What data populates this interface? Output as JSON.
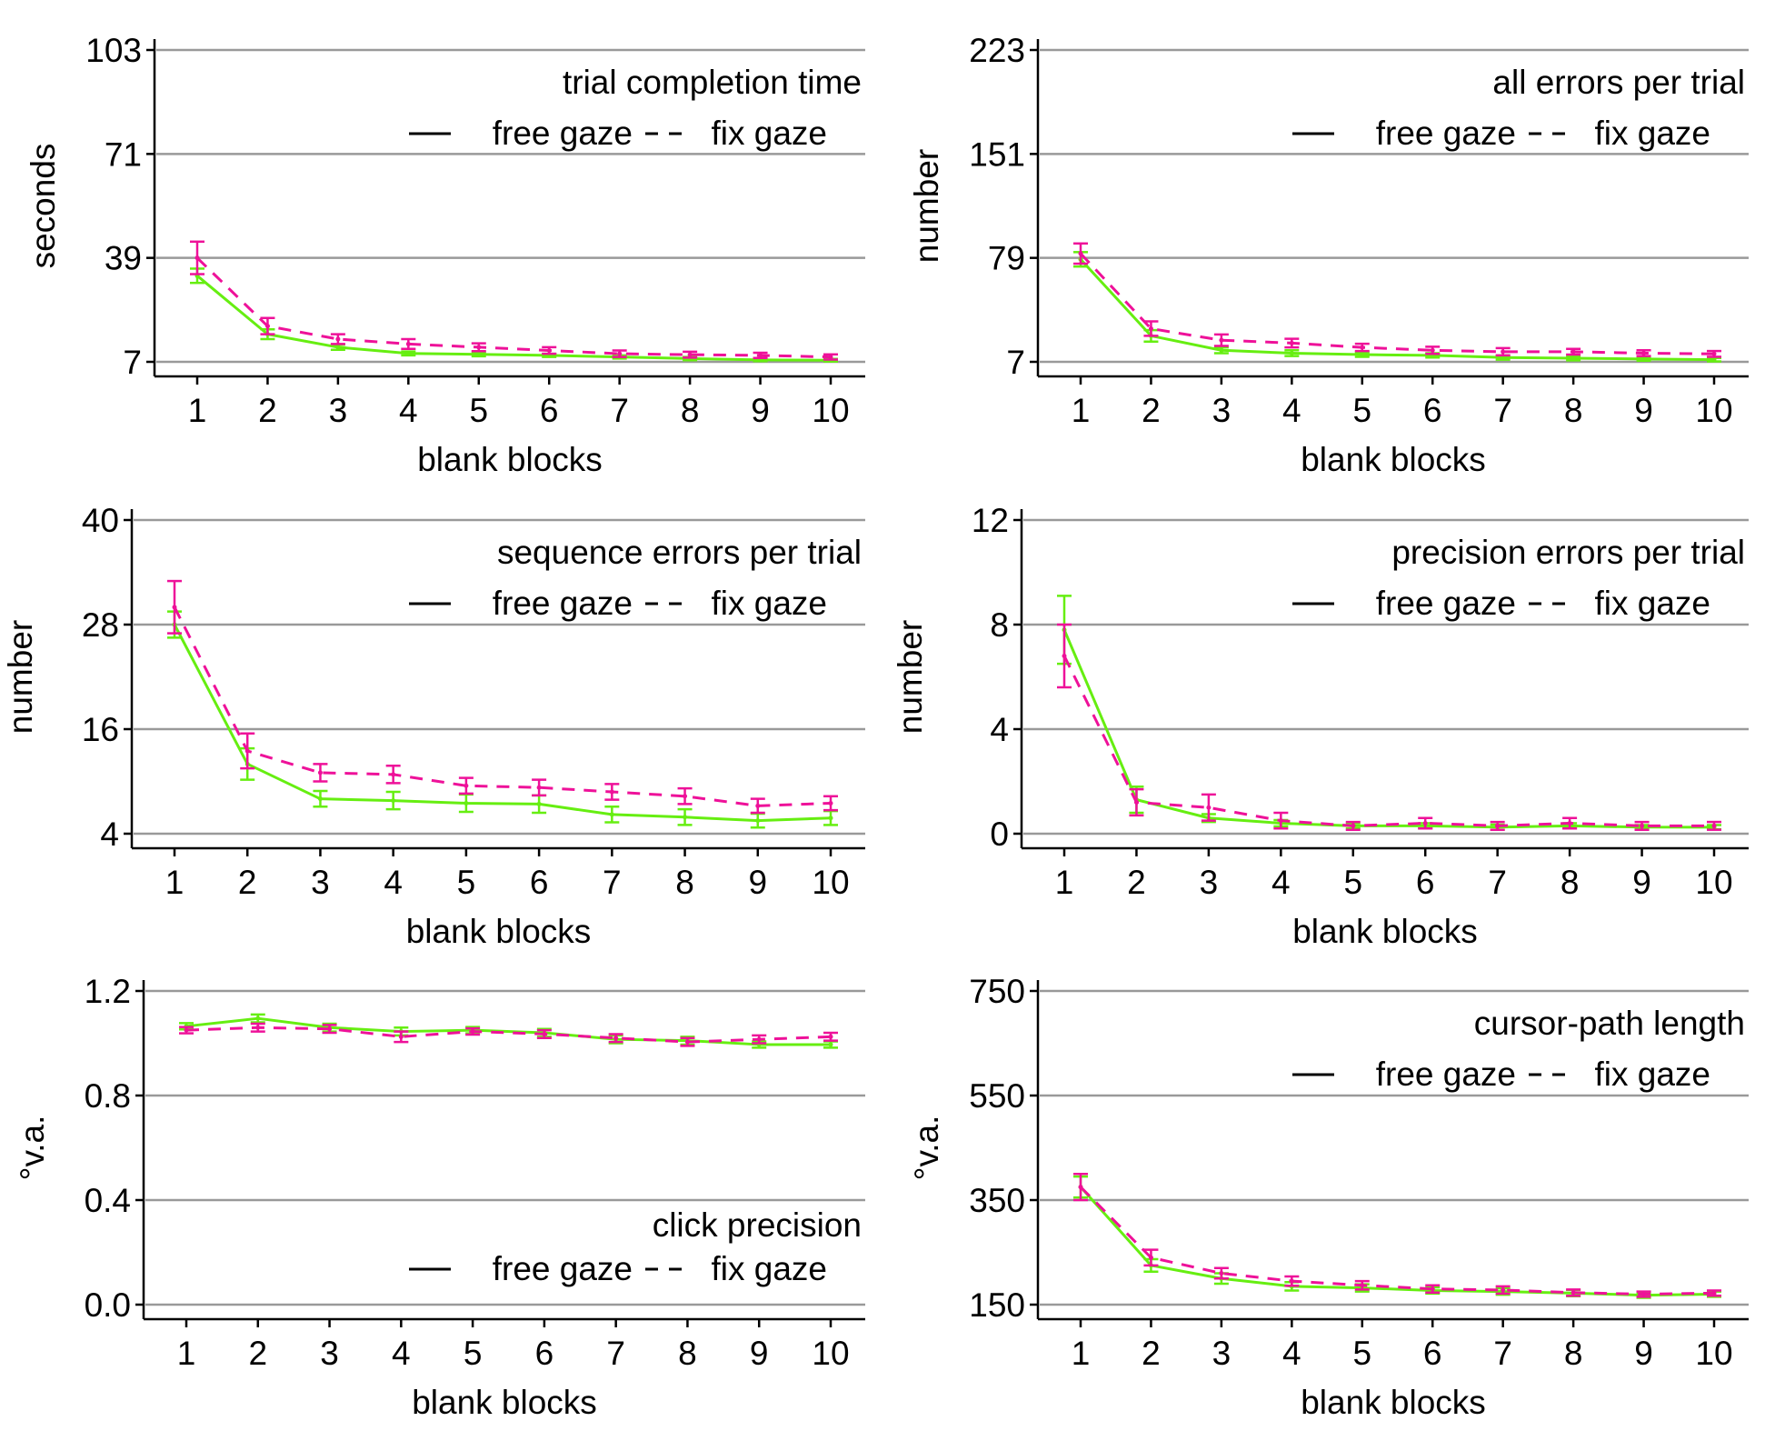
{
  "colors": {
    "free_gaze": "#66ee11",
    "fix_gaze": "#ee1199",
    "grid": "#999999",
    "axis": "#000000"
  },
  "chart_data": [
    {
      "type": "line",
      "title": "trial completion time",
      "xlabel": "blank blocks",
      "ylabel": "seconds",
      "x": [
        1,
        2,
        3,
        4,
        5,
        6,
        7,
        8,
        9,
        10
      ],
      "ylim": [
        7,
        103
      ],
      "yticks": [
        7,
        39,
        71,
        103
      ],
      "ytick_labels": [
        "7",
        "39",
        "71",
        "103"
      ],
      "legend_position": "top-right",
      "series": [
        {
          "name": "free gaze",
          "style": "solid",
          "values": [
            33.5,
            15.5,
            11.5,
            9.6,
            9.3,
            9.0,
            8.5,
            8.0,
            7.6,
            7.5
          ],
          "errors": [
            2.2,
            1.5,
            0.8,
            0.6,
            0.6,
            0.5,
            0.5,
            0.5,
            0.4,
            0.4
          ]
        },
        {
          "name": "fix gaze",
          "style": "dashed",
          "values": [
            39.0,
            18.0,
            14.0,
            12.5,
            11.5,
            10.5,
            9.5,
            9.2,
            9.0,
            8.5
          ],
          "errors": [
            5.0,
            2.5,
            1.5,
            1.5,
            1.2,
            1.0,
            1.0,
            0.9,
            0.8,
            0.8
          ]
        }
      ]
    },
    {
      "type": "line",
      "title": "all errors per trial",
      "xlabel": "blank blocks",
      "ylabel": "number",
      "x": [
        1,
        2,
        3,
        4,
        5,
        6,
        7,
        8,
        9,
        10
      ],
      "ylim": [
        7,
        223
      ],
      "yticks": [
        7,
        79,
        151,
        223
      ],
      "ytick_labels": [
        "7",
        "79",
        "151",
        "223"
      ],
      "legend_position": "top-right",
      "series": [
        {
          "name": "free gaze",
          "style": "solid",
          "values": [
            78.0,
            25.0,
            15.0,
            13.0,
            12.0,
            11.5,
            10.0,
            9.5,
            9.0,
            8.5
          ],
          "errors": [
            5.0,
            4.0,
            2.0,
            2.0,
            1.5,
            1.5,
            1.5,
            1.5,
            1.2,
            1.2
          ]
        },
        {
          "name": "fix gaze",
          "style": "dashed",
          "values": [
            82.0,
            30.0,
            22.0,
            20.0,
            17.0,
            15.0,
            14.0,
            14.0,
            13.0,
            12.5
          ],
          "errors": [
            7.0,
            5.0,
            4.0,
            3.0,
            2.5,
            2.5,
            2.5,
            2.0,
            2.0,
            2.0
          ]
        }
      ]
    },
    {
      "type": "line",
      "title": "sequence errors per trial",
      "xlabel": "blank blocks",
      "ylabel": "number",
      "x": [
        1,
        2,
        3,
        4,
        5,
        6,
        7,
        8,
        9,
        10
      ],
      "ylim": [
        4,
        40
      ],
      "yticks": [
        4,
        16,
        28,
        40
      ],
      "ytick_labels": [
        "4",
        "16",
        "28",
        "40"
      ],
      "legend_position": "top-right",
      "series": [
        {
          "name": "free gaze",
          "style": "solid",
          "values": [
            28.0,
            12.0,
            8.0,
            7.8,
            7.5,
            7.4,
            6.2,
            5.9,
            5.5,
            5.8
          ],
          "errors": [
            1.5,
            1.8,
            0.9,
            1.0,
            1.0,
            1.0,
            0.9,
            0.9,
            0.8,
            0.8
          ]
        },
        {
          "name": "fix gaze",
          "style": "dashed",
          "values": [
            30.0,
            13.5,
            11.0,
            10.8,
            9.5,
            9.3,
            8.8,
            8.3,
            7.2,
            7.5
          ],
          "errors": [
            3.0,
            2.0,
            1.0,
            1.0,
            0.9,
            0.9,
            0.9,
            0.9,
            0.8,
            0.8
          ]
        }
      ]
    },
    {
      "type": "line",
      "title": "precision errors per trial",
      "xlabel": "blank blocks",
      "ylabel": "number",
      "x": [
        1,
        2,
        3,
        4,
        5,
        6,
        7,
        8,
        9,
        10
      ],
      "ylim": [
        0,
        12
      ],
      "yticks": [
        0,
        4,
        8,
        12
      ],
      "ytick_labels": [
        "0",
        "4",
        "8",
        "12"
      ],
      "legend_position": "top-right",
      "series": [
        {
          "name": "free gaze",
          "style": "solid",
          "values": [
            7.8,
            1.3,
            0.6,
            0.4,
            0.3,
            0.3,
            0.25,
            0.3,
            0.25,
            0.25
          ],
          "errors": [
            1.3,
            0.5,
            0.15,
            0.12,
            0.1,
            0.1,
            0.1,
            0.1,
            0.08,
            0.08
          ]
        },
        {
          "name": "fix gaze",
          "style": "dashed",
          "values": [
            6.8,
            1.2,
            1.0,
            0.5,
            0.3,
            0.4,
            0.3,
            0.4,
            0.3,
            0.3
          ],
          "errors": [
            1.2,
            0.5,
            0.5,
            0.3,
            0.15,
            0.2,
            0.15,
            0.2,
            0.15,
            0.15
          ]
        }
      ]
    },
    {
      "type": "line",
      "title": "click precision",
      "xlabel": "blank blocks",
      "ylabel": "°v.a.",
      "x": [
        1,
        2,
        3,
        4,
        5,
        6,
        7,
        8,
        9,
        10
      ],
      "ylim": [
        0.0,
        1.2
      ],
      "yticks": [
        0.0,
        0.4,
        0.8,
        1.2
      ],
      "ytick_labels": [
        "0.0",
        "0.4",
        "0.8",
        "1.2"
      ],
      "legend_position": "bottom-right",
      "series": [
        {
          "name": "free gaze",
          "style": "solid",
          "values": [
            1.065,
            1.095,
            1.06,
            1.045,
            1.05,
            1.04,
            1.015,
            1.01,
            0.995,
            0.995
          ],
          "errors": [
            0.012,
            0.015,
            0.015,
            0.015,
            0.012,
            0.015,
            0.015,
            0.015,
            0.012,
            0.012
          ]
        },
        {
          "name": "fix gaze",
          "style": "dashed",
          "values": [
            1.05,
            1.06,
            1.055,
            1.025,
            1.045,
            1.035,
            1.02,
            1.005,
            1.015,
            1.025
          ],
          "errors": [
            0.012,
            0.015,
            0.015,
            0.02,
            0.012,
            0.015,
            0.015,
            0.015,
            0.015,
            0.015
          ]
        }
      ]
    },
    {
      "type": "line",
      "title": "cursor-path length",
      "xlabel": "blank blocks",
      "ylabel": "°v.a.",
      "x": [
        1,
        2,
        3,
        4,
        5,
        6,
        7,
        8,
        9,
        10
      ],
      "ylim": [
        150,
        750
      ],
      "yticks": [
        150,
        350,
        550,
        750
      ],
      "ytick_labels": [
        "150",
        "350",
        "550",
        "750"
      ],
      "legend_position": "top-right",
      "series": [
        {
          "name": "free gaze",
          "style": "solid",
          "values": [
            375,
            225,
            200,
            185,
            182,
            177,
            175,
            172,
            168,
            170
          ],
          "errors": [
            20,
            12,
            10,
            8,
            7,
            6,
            6,
            6,
            5,
            5
          ]
        },
        {
          "name": "fix gaze",
          "style": "dashed",
          "values": [
            375,
            240,
            210,
            195,
            187,
            180,
            178,
            173,
            170,
            172
          ],
          "errors": [
            25,
            15,
            10,
            9,
            8,
            7,
            7,
            6,
            5,
            5
          ]
        }
      ]
    }
  ]
}
